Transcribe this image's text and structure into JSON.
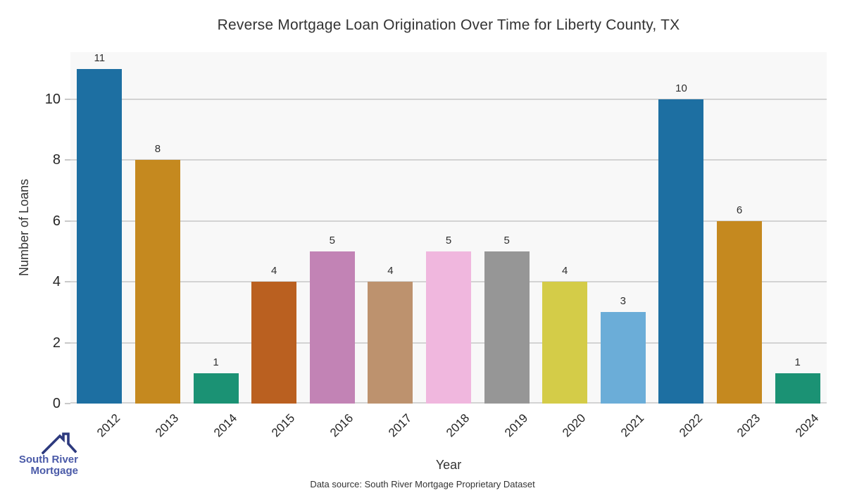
{
  "chart_data": {
    "type": "bar",
    "title": "Reverse Mortgage Loan Origination Over Time for Liberty County, TX",
    "xlabel": "Year",
    "ylabel": "Number of Loans",
    "categories": [
      "2012",
      "2013",
      "2014",
      "2015",
      "2016",
      "2017",
      "2018",
      "2019",
      "2020",
      "2021",
      "2022",
      "2023",
      "2024"
    ],
    "values": [
      11,
      8,
      1,
      4,
      5,
      4,
      5,
      5,
      4,
      3,
      10,
      6,
      1
    ],
    "bar_colors": [
      "#1d6fa2",
      "#c5891f",
      "#1b9274",
      "#ba6020",
      "#c283b5",
      "#bd926e",
      "#f0b7de",
      "#969696",
      "#d4cc48",
      "#6badd8",
      "#1d6fa2",
      "#c5891f",
      "#1b9274"
    ],
    "ylim": [
      0,
      11.55
    ],
    "yticks": [
      0,
      2,
      4,
      6,
      8,
      10
    ],
    "grid": "horizontal",
    "legend": "none",
    "value_labels": true
  },
  "footer": {
    "source": "Data source: South River Mortgage Proprietary Dataset"
  },
  "logo": {
    "line1": "South River",
    "line2": "Mortgage",
    "text_color": "#4a5aa8",
    "roof_color": "#2d3a7e"
  },
  "style": {
    "plot_bg": "#f8f8f8",
    "grid_color": "#d3d3d3",
    "title_color": "#333333",
    "tick_color": "#262626"
  }
}
